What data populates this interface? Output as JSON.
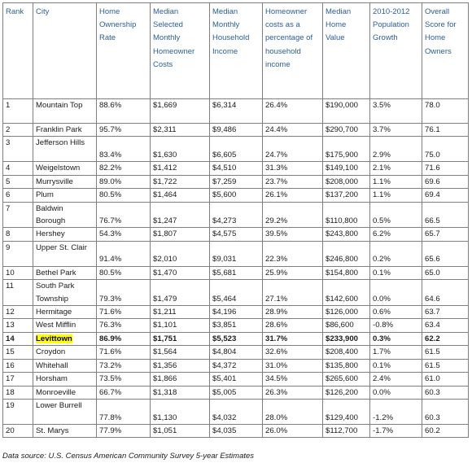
{
  "headers": {
    "rank": "Rank",
    "city": "City",
    "ownership": "Home Ownership Rate",
    "costs": "Median Selected Monthly Homeowner Costs",
    "income": "Median Monthly Household Income",
    "pct": "Homeowner costs as a percentage of household income",
    "value": "Median Home Value",
    "growth": "2010-2012 Population Growth",
    "score": "Overall Score for Home Owners"
  },
  "rows": [
    {
      "rank": "1",
      "city": "Mountain Top",
      "ownership": "88.6%",
      "costs": "$1,669",
      "income": "$6,314",
      "pct": "26.4%",
      "value": "$190,000",
      "growth": "3.5%",
      "score": "78.0"
    },
    {
      "rank": "2",
      "city": "Franklin Park",
      "ownership": "95.7%",
      "costs": "$2,311",
      "income": "$9,486",
      "pct": "24.4%",
      "value": "$290,700",
      "growth": "3.7%",
      "score": "76.1"
    },
    {
      "rank": "3",
      "city": "Jefferson Hills",
      "ownership": "83.4%",
      "costs": "$1,630",
      "income": "$6,605",
      "pct": "24.7%",
      "value": "$175,900",
      "growth": "2.9%",
      "score": "75.0"
    },
    {
      "rank": "4",
      "city": "Weigelstown",
      "ownership": "82.2%",
      "costs": "$1,412",
      "income": "$4,510",
      "pct": "31.3%",
      "value": "$149,100",
      "growth": "2.1%",
      "score": "71.6"
    },
    {
      "rank": "5",
      "city": "Murrysville",
      "ownership": "89.0%",
      "costs": "$1,722",
      "income": "$7,259",
      "pct": "23.7%",
      "value": "$208,000",
      "growth": "1.1%",
      "score": "69.6"
    },
    {
      "rank": "6",
      "city": "Plum",
      "ownership": "80.5%",
      "costs": "$1,464",
      "income": "$5,600",
      "pct": "26.1%",
      "value": "$137,200",
      "growth": "1.1%",
      "score": "69.4"
    },
    {
      "rank": "7",
      "city": "Baldwin Borough",
      "ownership": "76.7%",
      "costs": "$1,247",
      "income": "$4,273",
      "pct": "29.2%",
      "value": "$110,800",
      "growth": "0.5%",
      "score": "66.5"
    },
    {
      "rank": "8",
      "city": "Hershey",
      "ownership": "54.3%",
      "costs": "$1,807",
      "income": "$4,575",
      "pct": "39.5%",
      "value": "$243,800",
      "growth": "6.2%",
      "score": "65.7"
    },
    {
      "rank": "9",
      "city": "Upper St. Clair",
      "ownership": "91.4%",
      "costs": "$2,010",
      "income": "$9,031",
      "pct": "22.3%",
      "value": "$246,800",
      "growth": "0.2%",
      "score": "65.6"
    },
    {
      "rank": "10",
      "city": "Bethel Park",
      "ownership": "80.5%",
      "costs": "$1,470",
      "income": "$5,681",
      "pct": "25.9%",
      "value": "$154,800",
      "growth": "0.1%",
      "score": "65.0"
    },
    {
      "rank": "11",
      "city": "South Park Township",
      "ownership": "79.3%",
      "costs": "$1,479",
      "income": "$5,464",
      "pct": "27.1%",
      "value": "$142,600",
      "growth": "0.0%",
      "score": "64.6"
    },
    {
      "rank": "12",
      "city": "Hermitage",
      "ownership": "71.6%",
      "costs": "$1,211",
      "income": "$4,196",
      "pct": "28.9%",
      "value": "$126,000",
      "growth": "0.6%",
      "score": "63.7"
    },
    {
      "rank": "13",
      "city": "West Mifflin",
      "ownership": "76.3%",
      "costs": "$1,101",
      "income": "$3,851",
      "pct": "28.6%",
      "value": "$86,600",
      "growth": "-0.8%",
      "score": "63.4"
    },
    {
      "rank": "14",
      "city": "Levittown",
      "ownership": "86.9%",
      "costs": "$1,751",
      "income": "$5,523",
      "pct": "31.7%",
      "value": "$233,900",
      "growth": "0.3%",
      "score": "62.2"
    },
    {
      "rank": "15",
      "city": "Croydon",
      "ownership": "71.6%",
      "costs": "$1,564",
      "income": "$4,804",
      "pct": "32.6%",
      "value": "$208,400",
      "growth": "1.7%",
      "score": "61.5"
    },
    {
      "rank": "16",
      "city": "Whitehall",
      "ownership": "73.2%",
      "costs": "$1,356",
      "income": "$4,372",
      "pct": "31.0%",
      "value": "$135,800",
      "growth": "0.1%",
      "score": "61.5"
    },
    {
      "rank": "17",
      "city": "Horsham",
      "ownership": "73.5%",
      "costs": "$1,866",
      "income": "$5,401",
      "pct": "34.5%",
      "value": "$265,600",
      "growth": "2.4%",
      "score": "61.0"
    },
    {
      "rank": "18",
      "city": "Monroeville",
      "ownership": "66.7%",
      "costs": "$1,318",
      "income": "$5,005",
      "pct": "26.3%",
      "value": "$126,200",
      "growth": "0.0%",
      "score": "60.3"
    },
    {
      "rank": "19",
      "city": "Lower Burrell",
      "ownership": "77.8%",
      "costs": "$1,130",
      "income": "$4,032",
      "pct": "28.0%",
      "value": "$129,400",
      "growth": "-1.2%",
      "score": "60.3"
    },
    {
      "rank": "20",
      "city": "St. Marys",
      "ownership": "77.9%",
      "costs": "$1,051",
      "income": "$4,035",
      "pct": "26.0%",
      "value": "$112,700",
      "growth": "-1.7%",
      "score": "60.2"
    }
  ],
  "highlight_rank": "14",
  "highlight_color": "#ffff00",
  "header_color": "#2a6099",
  "footnote": "Data source: U.S. Census American Community Survey 5-year Estimates"
}
